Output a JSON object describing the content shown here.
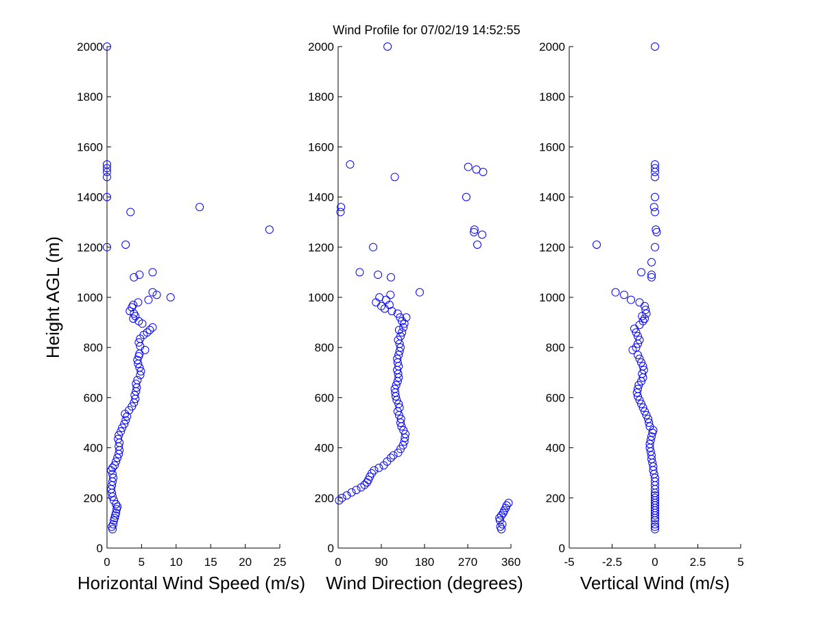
{
  "figure": {
    "title": "Wind Profile for  07/02/19 14:52:55",
    "background": "#ffffff",
    "marker_color": "#0000ff"
  },
  "chart_data": [
    {
      "type": "scatter",
      "name": "horizontal-wind-speed",
      "xlabel": "Horizontal Wind Speed (m/s)",
      "ylabel": "Height AGL (m)",
      "xlim": [
        0,
        25
      ],
      "ylim": [
        0,
        2000
      ],
      "xticks": [
        "0",
        "5",
        "10",
        "15",
        "20",
        "25"
      ],
      "yticks": [
        "0",
        "200",
        "400",
        "600",
        "800",
        "1000",
        "1200",
        "1400",
        "1600",
        "1800",
        "2000"
      ],
      "grid": false,
      "series": [
        {
          "name": "speed",
          "marker": "circle",
          "points": [
            [
              0.8,
              75
            ],
            [
              0.7,
              85
            ],
            [
              0.9,
              95
            ],
            [
              1.0,
              110
            ],
            [
              1.1,
              120
            ],
            [
              1.2,
              130
            ],
            [
              1.3,
              140
            ],
            [
              1.4,
              155
            ],
            [
              1.5,
              165
            ],
            [
              1.3,
              175
            ],
            [
              1.0,
              190
            ],
            [
              0.8,
              205
            ],
            [
              0.7,
              220
            ],
            [
              0.6,
              235
            ],
            [
              0.7,
              250
            ],
            [
              0.8,
              265
            ],
            [
              0.9,
              280
            ],
            [
              0.8,
              295
            ],
            [
              0.6,
              310
            ],
            [
              0.8,
              320
            ],
            [
              1.1,
              330
            ],
            [
              1.3,
              345
            ],
            [
              1.5,
              360
            ],
            [
              1.7,
              375
            ],
            [
              1.8,
              390
            ],
            [
              1.7,
              405
            ],
            [
              1.8,
              420
            ],
            [
              1.6,
              435
            ],
            [
              1.7,
              450
            ],
            [
              2.0,
              465
            ],
            [
              2.2,
              480
            ],
            [
              2.5,
              495
            ],
            [
              2.7,
              510
            ],
            [
              2.9,
              525
            ],
            [
              2.6,
              535
            ],
            [
              3.2,
              550
            ],
            [
              3.6,
              565
            ],
            [
              3.9,
              580
            ],
            [
              4.1,
              595
            ],
            [
              4.0,
              610
            ],
            [
              4.2,
              625
            ],
            [
              4.3,
              640
            ],
            [
              4.2,
              655
            ],
            [
              4.4,
              670
            ],
            [
              4.8,
              690
            ],
            [
              4.9,
              705
            ],
            [
              4.7,
              720
            ],
            [
              4.5,
              735
            ],
            [
              4.4,
              750
            ],
            [
              4.6,
              765
            ],
            [
              4.7,
              775
            ],
            [
              5.5,
              790
            ],
            [
              4.8,
              805
            ],
            [
              4.6,
              820
            ],
            [
              4.8,
              835
            ],
            [
              5.3,
              850
            ],
            [
              5.8,
              860
            ],
            [
              6.2,
              870
            ],
            [
              6.6,
              880
            ],
            [
              5.1,
              895
            ],
            [
              4.6,
              905
            ],
            [
              3.8,
              915
            ],
            [
              4.1,
              925
            ],
            [
              3.9,
              935
            ],
            [
              3.3,
              945
            ],
            [
              3.6,
              960
            ],
            [
              3.8,
              970
            ],
            [
              4.5,
              980
            ],
            [
              6.0,
              990
            ],
            [
              9.2,
              1000
            ],
            [
              7.2,
              1010
            ],
            [
              6.6,
              1020
            ],
            [
              3.9,
              1080
            ],
            [
              4.7,
              1090
            ],
            [
              6.6,
              1100
            ],
            [
              2.7,
              1210
            ],
            [
              0.0,
              1200
            ],
            [
              23.5,
              1270
            ],
            [
              3.4,
              1340
            ],
            [
              13.4,
              1360
            ],
            [
              0.0,
              1400
            ],
            [
              0.0,
              1480
            ],
            [
              0.0,
              1500
            ],
            [
              0.0,
              1515
            ],
            [
              0.0,
              1530
            ],
            [
              0.0,
              2000
            ]
          ]
        }
      ]
    },
    {
      "type": "scatter",
      "name": "wind-direction",
      "xlabel": "Wind Direction (degrees)",
      "ylabel": "",
      "xlim": [
        0,
        360
      ],
      "ylim": [
        0,
        2000
      ],
      "xticks": [
        "0",
        "90",
        "180",
        "270",
        "360"
      ],
      "yticks": [
        "0",
        "200",
        "400",
        "600",
        "800",
        "1000",
        "1200",
        "1400",
        "1600",
        "1800",
        "2000"
      ],
      "grid": false,
      "series": [
        {
          "name": "direction",
          "marker": "circle",
          "points": [
            [
              340,
              75
            ],
            [
              338,
              85
            ],
            [
              342,
              95
            ],
            [
              337,
              110
            ],
            [
              336,
              120
            ],
            [
              340,
              130
            ],
            [
              344,
              140
            ],
            [
              346,
              150
            ],
            [
              349,
              160
            ],
            [
              351,
              170
            ],
            [
              355,
              180
            ],
            [
              2,
              190
            ],
            [
              8,
              200
            ],
            [
              18,
              210
            ],
            [
              28,
              222
            ],
            [
              38,
              232
            ],
            [
              48,
              242
            ],
            [
              55,
              252
            ],
            [
              60,
              262
            ],
            [
              63,
              272
            ],
            [
              66,
              285
            ],
            [
              70,
              298
            ],
            [
              75,
              310
            ],
            [
              85,
              320
            ],
            [
              95,
              330
            ],
            [
              102,
              345
            ],
            [
              110,
              360
            ],
            [
              115,
              370
            ],
            [
              125,
              380
            ],
            [
              130,
              395
            ],
            [
              135,
              410
            ],
            [
              138,
              425
            ],
            [
              139,
              440
            ],
            [
              140,
              455
            ],
            [
              136,
              470
            ],
            [
              132,
              485
            ],
            [
              130,
              500
            ],
            [
              131,
              515
            ],
            [
              127,
              530
            ],
            [
              124,
              545
            ],
            [
              128,
              560
            ],
            [
              126,
              575
            ],
            [
              122,
              590
            ],
            [
              120,
              605
            ],
            [
              119,
              620
            ],
            [
              118,
              635
            ],
            [
              121,
              650
            ],
            [
              124,
              665
            ],
            [
              126,
              680
            ],
            [
              125,
              695
            ],
            [
              123,
              710
            ],
            [
              126,
              725
            ],
            [
              124,
              740
            ],
            [
              123,
              755
            ],
            [
              126,
              770
            ],
            [
              128,
              785
            ],
            [
              130,
              800
            ],
            [
              128,
              815
            ],
            [
              125,
              830
            ],
            [
              130,
              845
            ],
            [
              133,
              860
            ],
            [
              127,
              870
            ],
            [
              136,
              880
            ],
            [
              138,
              895
            ],
            [
              133,
              905
            ],
            [
              129,
              920
            ],
            [
              142,
              920
            ],
            [
              124,
              935
            ],
            [
              112,
              945
            ],
            [
              97,
              955
            ],
            [
              90,
              965
            ],
            [
              107,
              970
            ],
            [
              79,
              980
            ],
            [
              100,
              990
            ],
            [
              86,
              1000
            ],
            [
              109,
              1010
            ],
            [
              170,
              1020
            ],
            [
              110,
              1080
            ],
            [
              83,
              1090
            ],
            [
              45,
              1100
            ],
            [
              73,
              1200
            ],
            [
              290,
              1210
            ],
            [
              300,
              1250
            ],
            [
              283,
              1260
            ],
            [
              284,
              1270
            ],
            [
              5,
              1340
            ],
            [
              6,
              1360
            ],
            [
              267,
              1400
            ],
            [
              118,
              1480
            ],
            [
              302,
              1500
            ],
            [
              288,
              1510
            ],
            [
              271,
              1520
            ],
            [
              25,
              1530
            ],
            [
              103,
              2000
            ]
          ]
        }
      ]
    },
    {
      "type": "scatter",
      "name": "vertical-wind",
      "xlabel": "Vertical Wind (m/s)",
      "ylabel": "",
      "xlim": [
        -5,
        5
      ],
      "ylim": [
        0,
        2000
      ],
      "xticks": [
        "-5",
        "-2.5",
        "0",
        "2.5",
        "5"
      ],
      "yticks": [
        "0",
        "200",
        "400",
        "600",
        "800",
        "1000",
        "1200",
        "1400",
        "1600",
        "1800",
        "2000"
      ],
      "grid": false,
      "series": [
        {
          "name": "vertical",
          "marker": "circle",
          "points": [
            [
              0.0,
              75
            ],
            [
              0.0,
              85
            ],
            [
              0.0,
              95
            ],
            [
              0.0,
              110
            ],
            [
              0.0,
              120
            ],
            [
              0.0,
              130
            ],
            [
              0.0,
              140
            ],
            [
              0.0,
              150
            ],
            [
              0.0,
              160
            ],
            [
              0.0,
              170
            ],
            [
              0.0,
              180
            ],
            [
              0.0,
              190
            ],
            [
              0.0,
              200
            ],
            [
              0.0,
              210
            ],
            [
              0.0,
              220
            ],
            [
              0.0,
              235
            ],
            [
              0.0,
              250
            ],
            [
              0.0,
              265
            ],
            [
              0.0,
              280
            ],
            [
              -0.05,
              295
            ],
            [
              -0.1,
              310
            ],
            [
              -0.1,
              325
            ],
            [
              -0.15,
              340
            ],
            [
              -0.2,
              355
            ],
            [
              -0.2,
              370
            ],
            [
              -0.25,
              385
            ],
            [
              -0.3,
              400
            ],
            [
              -0.3,
              415
            ],
            [
              -0.25,
              430
            ],
            [
              -0.2,
              445
            ],
            [
              -0.15,
              460
            ],
            [
              -0.1,
              470
            ],
            [
              -0.3,
              485
            ],
            [
              -0.35,
              500
            ],
            [
              -0.4,
              515
            ],
            [
              -0.5,
              530
            ],
            [
              -0.6,
              545
            ],
            [
              -0.7,
              560
            ],
            [
              -0.8,
              575
            ],
            [
              -0.9,
              590
            ],
            [
              -1.0,
              605
            ],
            [
              -1.05,
              620
            ],
            [
              -1.0,
              635
            ],
            [
              -0.95,
              650
            ],
            [
              -0.8,
              665
            ],
            [
              -0.7,
              680
            ],
            [
              -0.75,
              695
            ],
            [
              -0.65,
              710
            ],
            [
              -0.7,
              725
            ],
            [
              -0.8,
              740
            ],
            [
              -0.9,
              755
            ],
            [
              -1.0,
              770
            ],
            [
              -1.3,
              790
            ],
            [
              -1.1,
              800
            ],
            [
              -1.0,
              815
            ],
            [
              -0.9,
              830
            ],
            [
              -1.0,
              845
            ],
            [
              -1.1,
              860
            ],
            [
              -1.2,
              875
            ],
            [
              -0.9,
              890
            ],
            [
              -0.7,
              905
            ],
            [
              -0.6,
              915
            ],
            [
              -0.75,
              925
            ],
            [
              -0.5,
              935
            ],
            [
              -0.55,
              950
            ],
            [
              -0.6,
              965
            ],
            [
              -0.9,
              980
            ],
            [
              -1.4,
              990
            ],
            [
              -1.8,
              1010
            ],
            [
              -2.3,
              1020
            ],
            [
              -0.2,
              1080
            ],
            [
              -0.2,
              1090
            ],
            [
              -0.8,
              1100
            ],
            [
              -0.2,
              1140
            ],
            [
              -3.4,
              1210
            ],
            [
              0.0,
              1200
            ],
            [
              0.1,
              1260
            ],
            [
              0.05,
              1270
            ],
            [
              0.0,
              1340
            ],
            [
              -0.05,
              1360
            ],
            [
              0.0,
              1400
            ],
            [
              0.0,
              1480
            ],
            [
              0.0,
              1500
            ],
            [
              0.0,
              1515
            ],
            [
              0.0,
              1530
            ],
            [
              0.0,
              2000
            ]
          ]
        }
      ]
    }
  ]
}
